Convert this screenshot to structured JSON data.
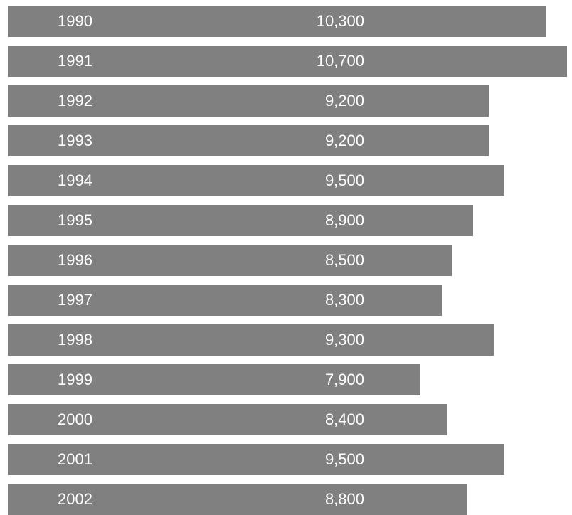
{
  "colors": {
    "bar": "#808080",
    "label_text": "#ffffff",
    "background": "#ffffff"
  },
  "chart_data": {
    "type": "bar",
    "orientation": "horizontal",
    "title": "",
    "xlabel": "",
    "ylabel": "",
    "grid": false,
    "legend": "none",
    "xlim": [
      0,
      10700
    ],
    "categories": [
      "1990",
      "1991",
      "1992",
      "1993",
      "1994",
      "1995",
      "1996",
      "1997",
      "1998",
      "1999",
      "2000",
      "2001",
      "2002"
    ],
    "values": [
      10300,
      10700,
      9200,
      9200,
      9500,
      8900,
      8500,
      8300,
      9300,
      7900,
      8400,
      9500,
      8800
    ],
    "value_labels": [
      "10,300",
      "10,700",
      "9,200",
      "9,200",
      "9,500",
      "8,900",
      "8,500",
      "8,300",
      "9,300",
      "7,900",
      "8,400",
      "9,500",
      "8,800"
    ]
  }
}
